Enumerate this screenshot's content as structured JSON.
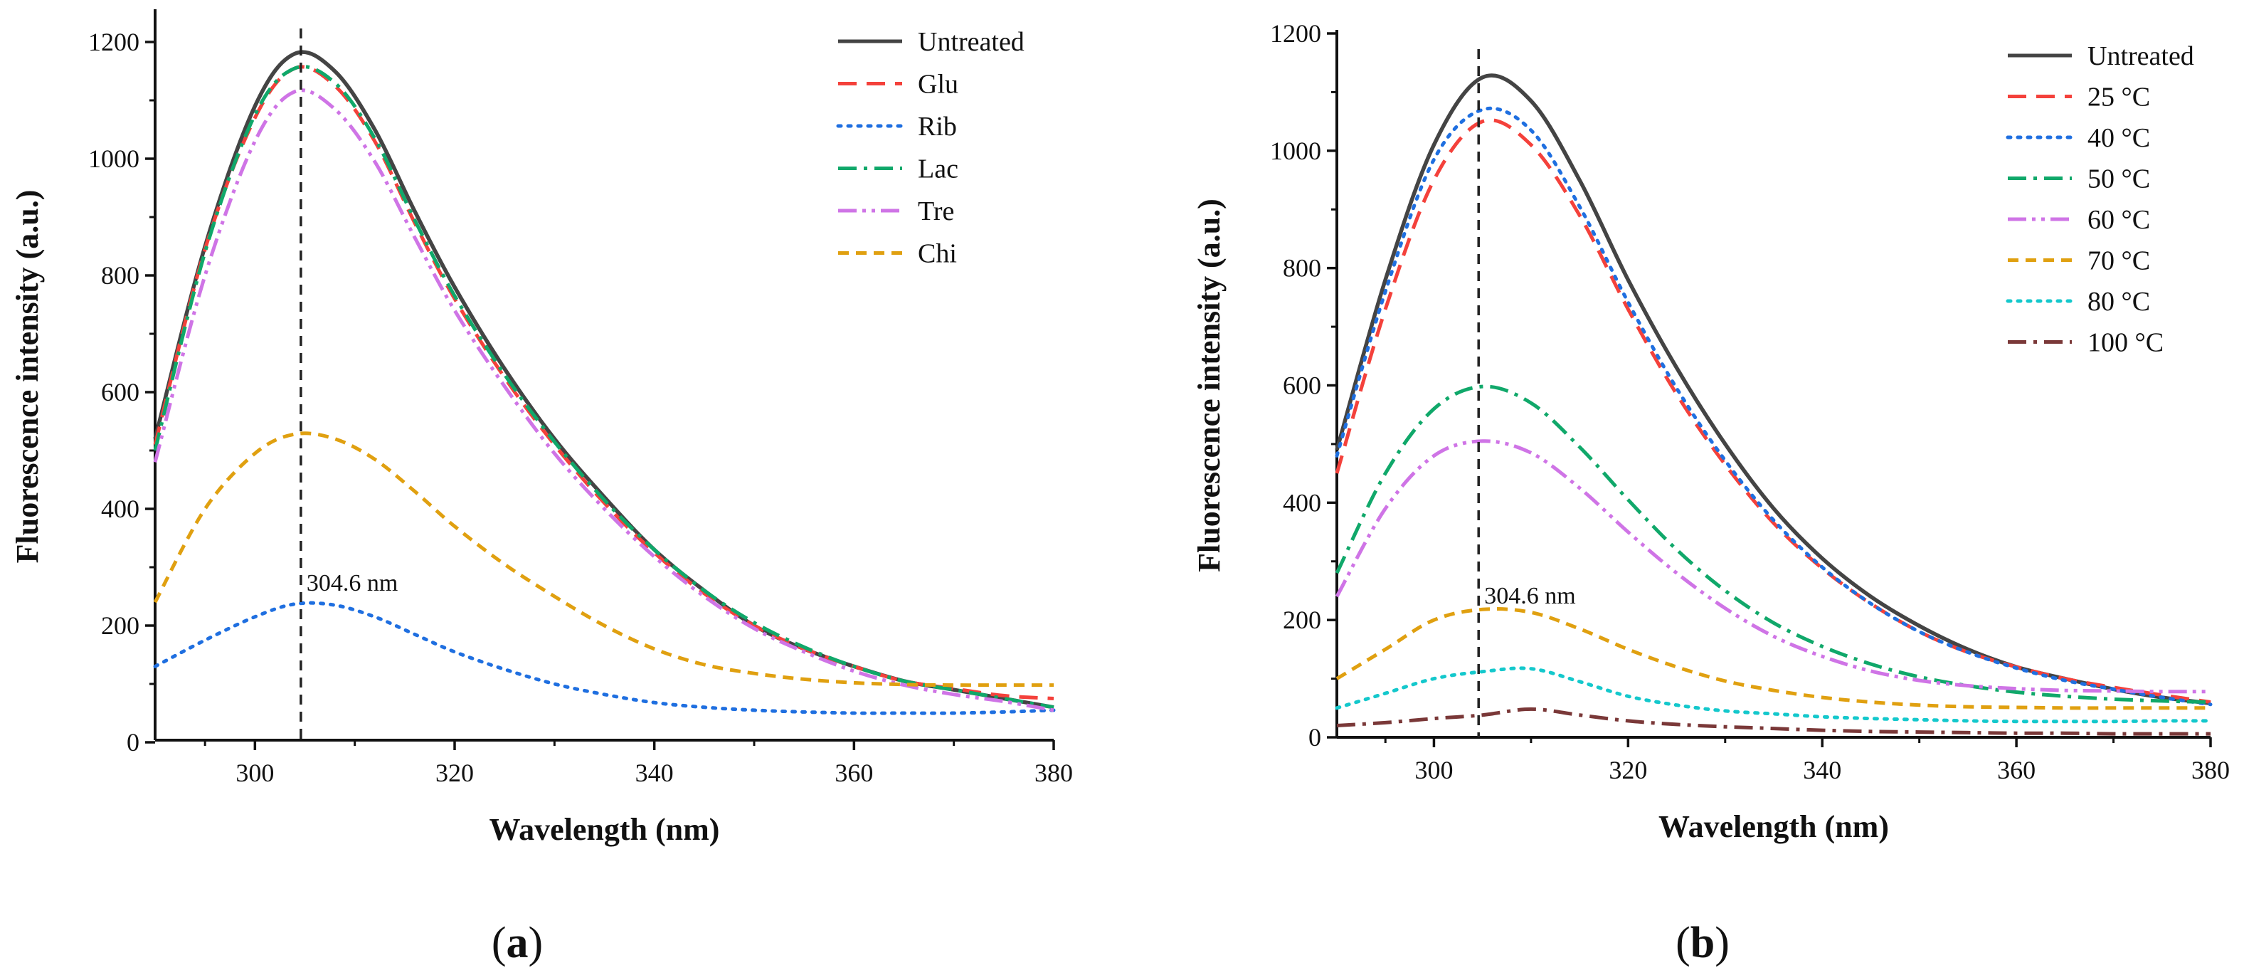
{
  "colors": {
    "untreated": "#444444",
    "red": "#f4413b",
    "blue": "#1f6fe0",
    "green": "#10a86a",
    "violet": "#cf74e6",
    "orange": "#e0a010",
    "cyan": "#14c8cc",
    "brown": "#7a3838",
    "axis": "#111111",
    "marker": "#222222"
  },
  "panels": [
    {
      "label": {
        "open": "(",
        "letter": "a",
        "close": ")"
      },
      "annotation": "304.6 nm"
    },
    {
      "label": {
        "open": "(",
        "letter": "b",
        "close": ")"
      },
      "annotation": "304.6 nm"
    }
  ],
  "chart_data": [
    {
      "type": "line",
      "title": "",
      "xlabel": "Wavelength (nm)",
      "ylabel": "Fluorescence intensity (a.u.)",
      "xlim": [
        290,
        380
      ],
      "ylim": [
        0,
        1250
      ],
      "xticks": [
        300,
        320,
        340,
        360,
        380
      ],
      "yticks": [
        0,
        200,
        400,
        600,
        800,
        1000,
        1200
      ],
      "legend_position": "top-right",
      "peak_marker_x": 304.6,
      "peak_marker_label": "304.6 nm",
      "x": [
        290,
        295,
        300,
        304,
        308,
        312,
        316,
        320,
        325,
        330,
        335,
        340,
        345,
        350,
        355,
        360,
        365,
        370,
        375,
        380
      ],
      "series": [
        {
          "name": "Untreated",
          "color_key": "untreated",
          "dash": "solid",
          "values": [
            520,
            850,
            1090,
            1180,
            1150,
            1050,
            910,
            780,
            640,
            520,
            420,
            330,
            260,
            200,
            160,
            130,
            105,
            90,
            75,
            60
          ]
        },
        {
          "name": "Glu",
          "color_key": "red",
          "dash": "dash",
          "values": [
            510,
            845,
            1070,
            1155,
            1125,
            1030,
            890,
            760,
            625,
            510,
            410,
            325,
            255,
            200,
            160,
            130,
            105,
            92,
            80,
            75
          ]
        },
        {
          "name": "Rib",
          "color_key": "blue",
          "dash": "dot",
          "values": [
            130,
            175,
            215,
            237,
            235,
            215,
            185,
            155,
            125,
            100,
            82,
            68,
            60,
            55,
            52,
            50,
            50,
            50,
            52,
            55
          ]
        },
        {
          "name": "Lac",
          "color_key": "green",
          "dash": "dashdot",
          "values": [
            500,
            840,
            1075,
            1155,
            1130,
            1035,
            895,
            765,
            630,
            515,
            415,
            330,
            260,
            205,
            163,
            130,
            105,
            90,
            75,
            60
          ]
        },
        {
          "name": "Tre",
          "color_key": "violet",
          "dash": "dashdotdot",
          "values": [
            480,
            800,
            1030,
            1115,
            1085,
            995,
            865,
            740,
            610,
            495,
            400,
            318,
            250,
            195,
            155,
            122,
            98,
            82,
            70,
            55
          ]
        },
        {
          "name": "Chi",
          "color_key": "orange",
          "dash": "shortdash",
          "values": [
            240,
            400,
            495,
            528,
            520,
            485,
            430,
            370,
            305,
            250,
            200,
            160,
            133,
            118,
            108,
            102,
            99,
            98,
            98,
            98
          ]
        }
      ]
    },
    {
      "type": "line",
      "title": "",
      "xlabel": "Wavelength (nm)",
      "ylabel": "Fluorescence intensity (a.u.)",
      "xlim": [
        290,
        380
      ],
      "ylim": [
        0,
        1200
      ],
      "xticks": [
        300,
        320,
        340,
        360,
        380
      ],
      "yticks": [
        0,
        200,
        400,
        600,
        800,
        1000,
        1200
      ],
      "legend_position": "top-right",
      "peak_marker_x": 304.6,
      "peak_marker_label": "304.6 nm",
      "x": [
        290,
        295,
        300,
        305,
        310,
        315,
        320,
        325,
        330,
        335,
        340,
        345,
        350,
        355,
        360,
        365,
        370,
        375,
        380
      ],
      "series": [
        {
          "name": "Untreated",
          "color_key": "untreated",
          "dash": "solid",
          "values": [
            490,
            780,
            1010,
            1125,
            1085,
            950,
            780,
            630,
            500,
            390,
            305,
            240,
            190,
            150,
            120,
            100,
            82,
            68,
            58
          ]
        },
        {
          "name": "25 °C",
          "color_key": "red",
          "dash": "dash",
          "values": [
            450,
            730,
            950,
            1050,
            1010,
            890,
            730,
            585,
            465,
            365,
            288,
            228,
            180,
            145,
            120,
            100,
            85,
            72,
            60
          ]
        },
        {
          "name": "40 °C",
          "color_key": "blue",
          "dash": "dot",
          "values": [
            480,
            760,
            985,
            1070,
            1035,
            905,
            742,
            595,
            472,
            370,
            290,
            228,
            180,
            145,
            118,
            97,
            82,
            68,
            56
          ]
        },
        {
          "name": "50 °C",
          "color_key": "green",
          "dash": "dashdot",
          "values": [
            280,
            450,
            560,
            598,
            570,
            495,
            405,
            320,
            250,
            195,
            155,
            125,
            103,
            88,
            77,
            70,
            65,
            62,
            60
          ]
        },
        {
          "name": "60 °C",
          "color_key": "violet",
          "dash": "dashdotdot",
          "values": [
            240,
            390,
            480,
            505,
            485,
            425,
            350,
            280,
            220,
            172,
            138,
            113,
            97,
            88,
            83,
            80,
            79,
            78,
            78
          ]
        },
        {
          "name": "70 °C",
          "color_key": "orange",
          "dash": "shortdash",
          "values": [
            100,
            150,
            200,
            218,
            213,
            185,
            150,
            120,
            96,
            80,
            68,
            60,
            55,
            52,
            51,
            50,
            50,
            50,
            50
          ]
        },
        {
          "name": "80 °C",
          "color_key": "cyan",
          "dash": "dot",
          "values": [
            50,
            75,
            100,
            112,
            117,
            95,
            70,
            55,
            45,
            40,
            35,
            32,
            30,
            28,
            27,
            27,
            27,
            28,
            28
          ]
        },
        {
          "name": "100 °C",
          "color_key": "brown",
          "dash": "dashdot",
          "values": [
            20,
            25,
            32,
            38,
            48,
            38,
            28,
            22,
            18,
            15,
            12,
            10,
            9,
            8,
            7,
            7,
            6,
            6,
            6
          ]
        }
      ]
    }
  ]
}
